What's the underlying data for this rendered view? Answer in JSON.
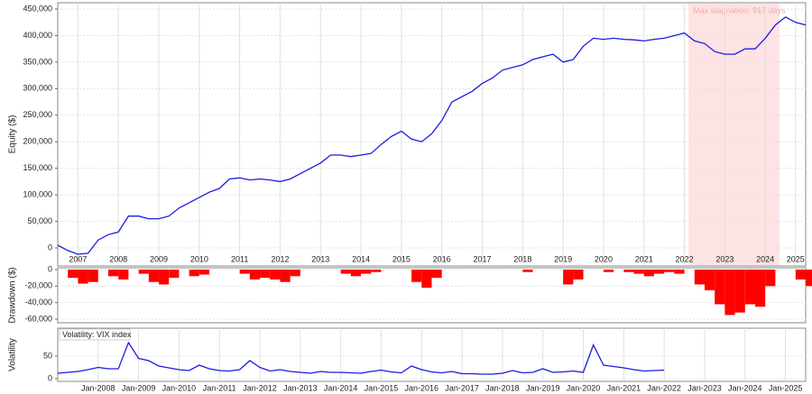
{
  "chart_data": [
    {
      "type": "line",
      "y_label": "Equity ($)",
      "shade": {
        "x": [
          2022.6,
          2024.85
        ],
        "label": "Max stagnation: 917 days",
        "color": "#fde3e3"
      },
      "x": [
        2007.0,
        2007.25,
        2007.5,
        2007.75,
        2008.0,
        2008.25,
        2008.5,
        2008.75,
        2009.0,
        2009.25,
        2009.5,
        2009.75,
        2010.0,
        2010.25,
        2010.5,
        2010.75,
        2011.0,
        2011.25,
        2011.5,
        2011.75,
        2012.0,
        2012.25,
        2012.5,
        2012.75,
        2013.0,
        2013.25,
        2013.5,
        2013.75,
        2014.0,
        2014.25,
        2014.5,
        2014.75,
        2015.0,
        2015.25,
        2015.5,
        2015.75,
        2016.0,
        2016.25,
        2016.5,
        2016.75,
        2017.0,
        2017.25,
        2017.5,
        2017.75,
        2018.0,
        2018.25,
        2018.5,
        2018.75,
        2019.0,
        2019.25,
        2019.5,
        2019.75,
        2020.0,
        2020.25,
        2020.5,
        2020.75,
        2021.0,
        2021.25,
        2021.5,
        2021.75,
        2022.0,
        2022.25,
        2022.5,
        2022.75,
        2023.0,
        2023.25,
        2023.5,
        2023.75,
        2024.0,
        2024.25,
        2024.5,
        2024.75,
        2025.0,
        2025.25,
        2025.5
      ],
      "series": [
        {
          "name": "Equity",
          "color": "#1c1ce0",
          "values": [
            5000,
            -5000,
            -12000,
            -10000,
            15000,
            25000,
            30000,
            60000,
            60000,
            55000,
            55000,
            60000,
            75000,
            85000,
            95000,
            105000,
            112000,
            130000,
            132000,
            128000,
            130000,
            128000,
            125000,
            130000,
            140000,
            150000,
            160000,
            175000,
            175000,
            172000,
            175000,
            178000,
            195000,
            210000,
            220000,
            205000,
            200000,
            215000,
            240000,
            275000,
            285000,
            295000,
            310000,
            320000,
            335000,
            340000,
            345000,
            355000,
            360000,
            365000,
            350000,
            355000,
            380000,
            395000,
            393000,
            395000,
            393000,
            392000,
            390000,
            393000,
            395000,
            400000,
            405000,
            390000,
            385000,
            370000,
            365000,
            365000,
            375000,
            375000,
            395000,
            420000,
            435000,
            425000,
            420000
          ]
        }
      ],
      "xlim": [
        2007.0,
        2025.5
      ],
      "ylim": [
        -34000,
        462000
      ],
      "xticks": [
        {
          "value": 2007.5,
          "label": "2007"
        },
        {
          "value": 2008.5,
          "label": "2008"
        },
        {
          "value": 2009.5,
          "label": "2009"
        },
        {
          "value": 2010.5,
          "label": "2010"
        },
        {
          "value": 2011.5,
          "label": "2011"
        },
        {
          "value": 2012.5,
          "label": "2012"
        },
        {
          "value": 2013.5,
          "label": "2013"
        },
        {
          "value": 2014.5,
          "label": "2014"
        },
        {
          "value": 2015.5,
          "label": "2015"
        },
        {
          "value": 2016.5,
          "label": "2016"
        },
        {
          "value": 2017.5,
          "label": "2017"
        },
        {
          "value": 2018.5,
          "label": "2018"
        },
        {
          "value": 2019.5,
          "label": "2019"
        },
        {
          "value": 2020.5,
          "label": "2020"
        },
        {
          "value": 2021.5,
          "label": "2021"
        },
        {
          "value": 2022.5,
          "label": "2022"
        },
        {
          "value": 2023.5,
          "label": "2023"
        },
        {
          "value": 2024.5,
          "label": "2024"
        },
        {
          "value": 2025.25,
          "label": "2025"
        }
      ],
      "yticks": [
        0,
        {
          "value": 50000,
          "label": "50,000"
        },
        {
          "value": 100000,
          "label": "100,000"
        },
        {
          "value": 150000,
          "label": "150,000"
        },
        {
          "value": 200000,
          "label": "200,000"
        },
        {
          "value": 250000,
          "label": "250,000"
        },
        {
          "value": 300000,
          "label": "300,000"
        },
        {
          "value": 350000,
          "label": "350,000"
        },
        {
          "value": 400000,
          "label": "400,000"
        },
        {
          "value": 450000,
          "label": "450,000"
        }
      ],
      "grid": true
    },
    {
      "type": "bar",
      "y_label": "Drawdown ($)",
      "x": [
        2007.0,
        2007.25,
        2007.5,
        2007.75,
        2008.0,
        2008.25,
        2008.5,
        2008.75,
        2009.0,
        2009.25,
        2009.5,
        2009.75,
        2010.0,
        2010.25,
        2010.5,
        2010.75,
        2011.0,
        2011.25,
        2011.5,
        2011.75,
        2012.0,
        2012.25,
        2012.5,
        2012.75,
        2013.0,
        2013.25,
        2013.5,
        2013.75,
        2014.0,
        2014.25,
        2014.5,
        2014.75,
        2015.0,
        2015.25,
        2015.5,
        2015.75,
        2016.0,
        2016.25,
        2016.5,
        2016.75,
        2017.0,
        2017.25,
        2017.5,
        2017.75,
        2018.0,
        2018.25,
        2018.5,
        2018.75,
        2019.0,
        2019.25,
        2019.5,
        2019.75,
        2020.0,
        2020.25,
        2020.5,
        2020.75,
        2021.0,
        2021.25,
        2021.5,
        2021.75,
        2022.0,
        2022.25,
        2022.5,
        2022.75,
        2023.0,
        2023.25,
        2023.5,
        2023.75,
        2024.0,
        2024.25,
        2024.5,
        2024.75,
        2025.0,
        2025.25,
        2025.5
      ],
      "series": [
        {
          "name": "Drawdown",
          "color": "#ff0000",
          "values": [
            0,
            -10000,
            -17000,
            -15000,
            0,
            -8000,
            -12000,
            0,
            -5000,
            -15000,
            -18000,
            -10000,
            0,
            -8000,
            -6000,
            0,
            0,
            0,
            -5000,
            -12000,
            -10000,
            -12000,
            -15000,
            -8000,
            0,
            0,
            0,
            0,
            -5000,
            -8000,
            -5000,
            -3000,
            0,
            0,
            0,
            -15000,
            -22000,
            -10000,
            0,
            0,
            0,
            0,
            0,
            0,
            0,
            0,
            -3000,
            0,
            0,
            0,
            -18000,
            -12000,
            0,
            0,
            -3000,
            0,
            -3000,
            -5000,
            -8000,
            -5000,
            -3000,
            -5000,
            0,
            -18000,
            -25000,
            -42000,
            -55000,
            -52000,
            -42000,
            -45000,
            -20000,
            0,
            0,
            -12000,
            -20000
          ]
        }
      ],
      "xlim": [
        2007.0,
        2025.5
      ],
      "ylim": [
        -64400,
        2200
      ],
      "yticks": [
        0,
        {
          "value": -20000,
          "label": "-20,000"
        },
        {
          "value": -40000,
          "label": "-40,000"
        },
        {
          "value": -60000,
          "label": "-60,000"
        }
      ],
      "grid": true
    },
    {
      "type": "line",
      "y_label": "Volatility",
      "x": [
        2007.0,
        2007.25,
        2007.5,
        2007.75,
        2008.0,
        2008.25,
        2008.5,
        2008.75,
        2009.0,
        2009.25,
        2009.5,
        2009.75,
        2010.0,
        2010.25,
        2010.5,
        2010.75,
        2011.0,
        2011.25,
        2011.5,
        2011.75,
        2012.0,
        2012.25,
        2012.5,
        2012.75,
        2013.0,
        2013.25,
        2013.5,
        2013.75,
        2014.0,
        2014.25,
        2014.5,
        2014.75,
        2015.0,
        2015.25,
        2015.5,
        2015.75,
        2016.0,
        2016.25,
        2016.5,
        2016.75,
        2017.0,
        2017.25,
        2017.5,
        2017.75,
        2018.0,
        2018.25,
        2018.5,
        2018.75,
        2019.0,
        2019.25,
        2019.5,
        2019.75,
        2020.0,
        2020.25,
        2020.5,
        2020.75,
        2021.0,
        2021.25,
        2021.5,
        2021.75,
        2022.0
      ],
      "series": [
        {
          "name": "Volatility: VIX index",
          "color": "#1c1ce0",
          "values": [
            12,
            14,
            16,
            20,
            25,
            22,
            22,
            80,
            45,
            40,
            28,
            24,
            20,
            18,
            30,
            22,
            18,
            17,
            20,
            40,
            25,
            17,
            20,
            16,
            14,
            12,
            16,
            14,
            14,
            13,
            12,
            16,
            19,
            15,
            13,
            28,
            20,
            15,
            13,
            16,
            11,
            11,
            10,
            10,
            12,
            18,
            13,
            14,
            22,
            14,
            15,
            17,
            14,
            75,
            30,
            27,
            24,
            20,
            17,
            18,
            19
          ]
        }
      ],
      "xlim": [
        2007.0,
        2025.5
      ],
      "ylim": [
        -6,
        112
      ],
      "xticks": [
        {
          "value": 2008,
          "label": "Jan-2008"
        },
        {
          "value": 2009,
          "label": "Jan-2009"
        },
        {
          "value": 2010,
          "label": "Jan-2010"
        },
        {
          "value": 2011,
          "label": "Jan-2011"
        },
        {
          "value": 2012,
          "label": "Jan-2012"
        },
        {
          "value": 2013,
          "label": "Jan-2013"
        },
        {
          "value": 2014,
          "label": "Jan-2014"
        },
        {
          "value": 2015,
          "label": "Jan-2015"
        },
        {
          "value": 2016,
          "label": "Jan-2016"
        },
        {
          "value": 2017,
          "label": "Jan-2017"
        },
        {
          "value": 2018,
          "label": "Jan-2018"
        },
        {
          "value": 2019,
          "label": "Jan-2019"
        },
        {
          "value": 2020,
          "label": "Jan-2020"
        },
        {
          "value": 2021,
          "label": "Jan-2021"
        },
        {
          "value": 2022,
          "label": "Jan-2022"
        },
        {
          "value": 2023,
          "label": "Jan-2023"
        },
        {
          "value": 2024,
          "label": "Jan-2024"
        },
        {
          "value": 2025,
          "label": "Jan-2025"
        }
      ],
      "yticks": [
        0,
        50
      ],
      "grid": true
    }
  ]
}
